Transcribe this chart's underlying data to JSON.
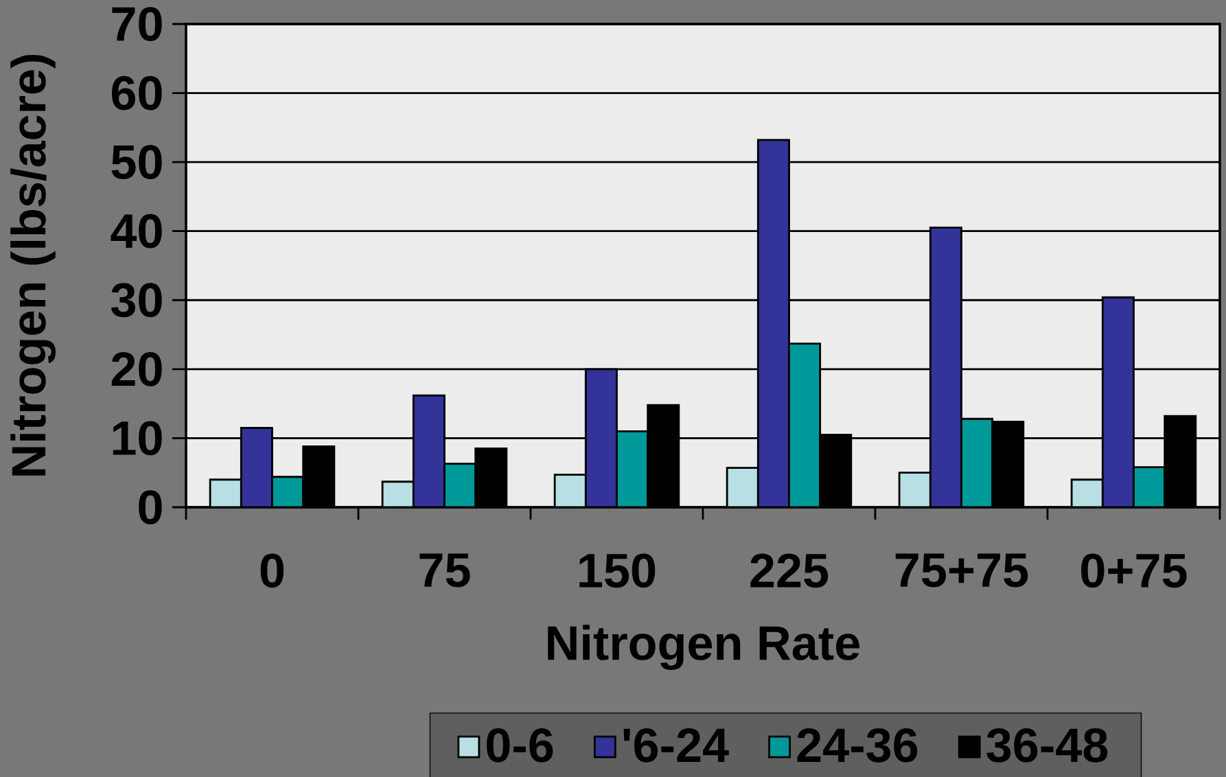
{
  "chart_data": {
    "type": "bar",
    "xlabel": "Nitrogen Rate",
    "ylabel": "Nitrogen (lbs/acre)",
    "categories": [
      "0",
      "75",
      "150",
      "225",
      "75+75",
      "0+75"
    ],
    "series": [
      {
        "name": "0-6",
        "color": "#b8e0e4",
        "values": [
          4.0,
          3.7,
          4.7,
          5.7,
          5.0,
          4.0
        ]
      },
      {
        "name": "'6-24",
        "color": "#333399",
        "values": [
          11.5,
          16.2,
          20.0,
          53.2,
          40.5,
          30.4
        ]
      },
      {
        "name": "24-36",
        "color": "#009999",
        "values": [
          4.4,
          6.3,
          11.0,
          23.7,
          12.8,
          5.8
        ]
      },
      {
        "name": "36-48",
        "color": "#000000",
        "values": [
          8.8,
          8.5,
          14.8,
          10.5,
          12.4,
          13.2
        ]
      }
    ],
    "ylim": [
      0,
      70
    ],
    "yticks": [
      0,
      10,
      20,
      30,
      40,
      50,
      60,
      70
    ],
    "grid": "y",
    "legend": "bottom"
  }
}
